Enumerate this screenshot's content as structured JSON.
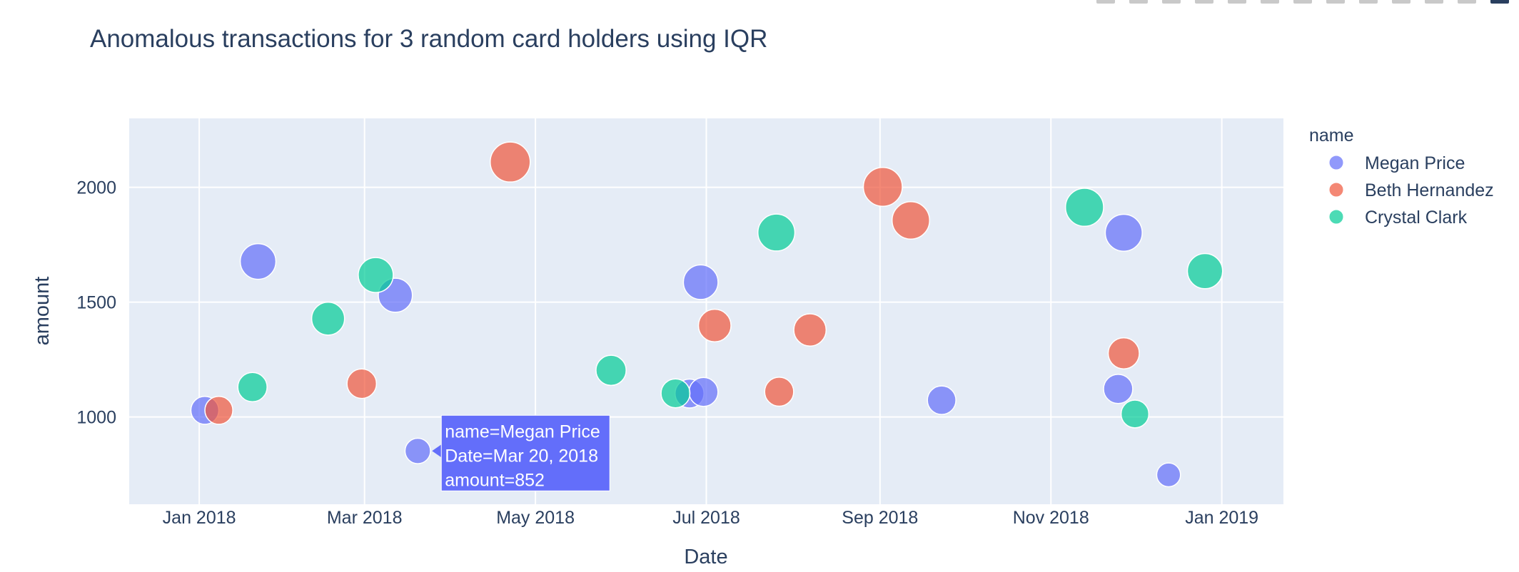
{
  "chart_data": {
    "type": "scatter",
    "title": "Anomalous transactions for 3 random card holders using IQR",
    "xlabel": "Date",
    "ylabel": "amount",
    "x_type": "date",
    "xlim": [
      "2017-12-07",
      "2019-01-23"
    ],
    "ylim": [
      620,
      2300
    ],
    "x_ticks": [
      {
        "date": "2018-01-01",
        "label": "Jan 2018"
      },
      {
        "date": "2018-03-01",
        "label": "Mar 2018"
      },
      {
        "date": "2018-05-01",
        "label": "May 2018"
      },
      {
        "date": "2018-07-01",
        "label": "Jul 2018"
      },
      {
        "date": "2018-09-01",
        "label": "Sep 2018"
      },
      {
        "date": "2018-11-01",
        "label": "Nov 2018"
      },
      {
        "date": "2019-01-01",
        "label": "Jan 2019"
      }
    ],
    "y_ticks": [
      1000,
      1500,
      2000
    ],
    "grid": true,
    "legend": {
      "title": "name",
      "position": "right"
    },
    "marker_size": "amount",
    "series": [
      {
        "name": "Megan Price",
        "color": "#636efa",
        "points": [
          {
            "x": "2018-01-03",
            "y": 1029
          },
          {
            "x": "2018-01-22",
            "y": 1677
          },
          {
            "x": "2018-03-12",
            "y": 1530
          },
          {
            "x": "2018-03-20",
            "y": 852
          },
          {
            "x": "2018-06-25",
            "y": 1102
          },
          {
            "x": "2018-06-29",
            "y": 1587
          },
          {
            "x": "2018-06-30",
            "y": 1109
          },
          {
            "x": "2018-09-23",
            "y": 1073
          },
          {
            "x": "2018-11-25",
            "y": 1122
          },
          {
            "x": "2018-11-27",
            "y": 1802
          },
          {
            "x": "2018-12-13",
            "y": 748
          }
        ]
      },
      {
        "name": "Beth Hernandez",
        "color": "#ef553b",
        "points": [
          {
            "x": "2018-01-08",
            "y": 1029
          },
          {
            "x": "2018-02-28",
            "y": 1145
          },
          {
            "x": "2018-04-22",
            "y": 2110
          },
          {
            "x": "2018-07-04",
            "y": 1398
          },
          {
            "x": "2018-07-27",
            "y": 1110
          },
          {
            "x": "2018-08-07",
            "y": 1379
          },
          {
            "x": "2018-09-02",
            "y": 2002
          },
          {
            "x": "2018-09-12",
            "y": 1856
          },
          {
            "x": "2018-11-27",
            "y": 1277
          }
        ]
      },
      {
        "name": "Crystal Clark",
        "color": "#00cc96",
        "points": [
          {
            "x": "2018-01-20",
            "y": 1130
          },
          {
            "x": "2018-02-16",
            "y": 1428
          },
          {
            "x": "2018-03-05",
            "y": 1618
          },
          {
            "x": "2018-05-28",
            "y": 1203
          },
          {
            "x": "2018-06-20",
            "y": 1103
          },
          {
            "x": "2018-07-26",
            "y": 1803
          },
          {
            "x": "2018-11-13",
            "y": 1913
          },
          {
            "x": "2018-12-01",
            "y": 1013
          },
          {
            "x": "2018-12-26",
            "y": 1635
          }
        ]
      }
    ],
    "tooltip": {
      "series": "Megan Price",
      "point_date": "2018-03-20",
      "point_amount": 852,
      "lines": [
        "name=Megan Price",
        "Date=Mar 20, 2018",
        "amount=852"
      ]
    }
  }
}
